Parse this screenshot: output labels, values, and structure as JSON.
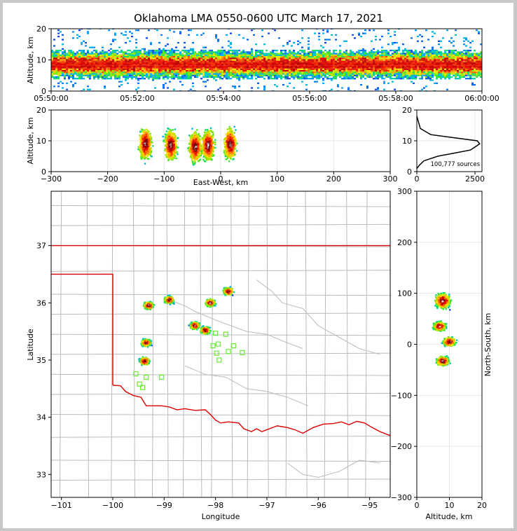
{
  "title": "Oklahoma LMA 0550-0600 UTC March 17, 2021",
  "colors": {
    "border_red": "#dd0000",
    "county_lines": "#bbbbbb",
    "network_station": "#66ee33"
  },
  "chart_data": [
    {
      "type": "heatmap",
      "panel": "time-altitude",
      "ylabel": "Altitude, km",
      "xlabel": "",
      "ylim": [
        0,
        20
      ],
      "yticks": [
        "0",
        "10",
        "20"
      ],
      "xticks": [
        "05:50:00",
        "05:52:00",
        "05:54:00",
        "05:56:00",
        "05:58:00",
        "06:00:00"
      ],
      "xlim": [
        "05:50:00",
        "06:00:00"
      ],
      "note_band_km": [
        4,
        13
      ]
    },
    {
      "type": "heatmap",
      "panel": "east-west-altitude",
      "xlabel": "East-West, km",
      "ylabel": "Altitude, km",
      "xlim": [
        -300,
        300
      ],
      "ylim": [
        0,
        20
      ],
      "xticks": [
        "−300",
        "−200",
        "−100",
        "0",
        "100",
        "200",
        "300"
      ],
      "yticks": [
        "0",
        "10",
        "20"
      ],
      "clusters": [
        {
          "x": -133,
          "alt": 9
        },
        {
          "x": -88,
          "alt": 8.5
        },
        {
          "x": -45,
          "alt": 8
        },
        {
          "x": -22,
          "alt": 8.5
        },
        {
          "x": 17,
          "alt": 9
        }
      ]
    },
    {
      "type": "line",
      "panel": "altitude-histogram",
      "annotation": "100,777 sources",
      "xlim": [
        0,
        2800
      ],
      "ylim": [
        0,
        20
      ],
      "xticks": [
        "0",
        "2500"
      ],
      "yticks": [
        "0",
        "10",
        "20"
      ],
      "x": [
        0,
        100,
        300,
        900,
        1600,
        2300,
        2700,
        2600,
        1600,
        600,
        150,
        0
      ],
      "y": [
        1,
        2,
        3.5,
        5,
        6,
        7,
        9,
        10,
        11,
        12,
        14,
        18
      ]
    },
    {
      "type": "heatmap",
      "panel": "plan-view",
      "xlabel": "Longitude",
      "ylabel": "Latitude",
      "xlim": [
        -101.2,
        -94.6
      ],
      "ylim": [
        32.6,
        37.95
      ],
      "xticks": [
        "−101",
        "−100",
        "−99",
        "−98",
        "−97",
        "−96",
        "−95"
      ],
      "yticks": [
        "33",
        "34",
        "35",
        "36",
        "37"
      ],
      "cells": [
        {
          "lon": -99.3,
          "lat": 35.95
        },
        {
          "lon": -98.9,
          "lat": 36.05
        },
        {
          "lon": -98.1,
          "lat": 36.0
        },
        {
          "lon": -97.75,
          "lat": 36.2
        },
        {
          "lon": -98.4,
          "lat": 35.6
        },
        {
          "lon": -98.2,
          "lat": 35.52
        },
        {
          "lon": -99.35,
          "lat": 35.3
        },
        {
          "lon": -99.38,
          "lat": 34.98
        }
      ],
      "stations": [
        {
          "lon": -98.0,
          "lat": 35.47
        },
        {
          "lon": -97.8,
          "lat": 35.45
        },
        {
          "lon": -98.05,
          "lat": 35.25
        },
        {
          "lon": -97.95,
          "lat": 35.28
        },
        {
          "lon": -97.65,
          "lat": 35.25
        },
        {
          "lon": -97.98,
          "lat": 35.12
        },
        {
          "lon": -97.75,
          "lat": 35.15
        },
        {
          "lon": -97.48,
          "lat": 35.13
        },
        {
          "lon": -97.93,
          "lat": 35.0
        },
        {
          "lon": -99.55,
          "lat": 34.76
        },
        {
          "lon": -99.35,
          "lat": 34.7
        },
        {
          "lon": -99.05,
          "lat": 34.7
        },
        {
          "lon": -99.48,
          "lat": 34.58
        },
        {
          "lon": -99.42,
          "lat": 34.52
        }
      ]
    },
    {
      "type": "heatmap",
      "panel": "altitude-north-south",
      "xlabel": "Altitude, km",
      "ylabel": "North-South, km",
      "xlim": [
        0,
        20
      ],
      "ylim": [
        -300,
        300
      ],
      "xticks": [
        "0",
        "10",
        "20"
      ],
      "yticks": [
        "−300",
        "−200",
        "−100",
        "0",
        "100",
        "200",
        "300"
      ],
      "clusters": [
        {
          "alt": 8,
          "ns": 85
        },
        {
          "alt": 7,
          "ns": 35
        },
        {
          "alt": 10,
          "ns": 5
        },
        {
          "alt": 8,
          "ns": -33
        }
      ]
    }
  ]
}
